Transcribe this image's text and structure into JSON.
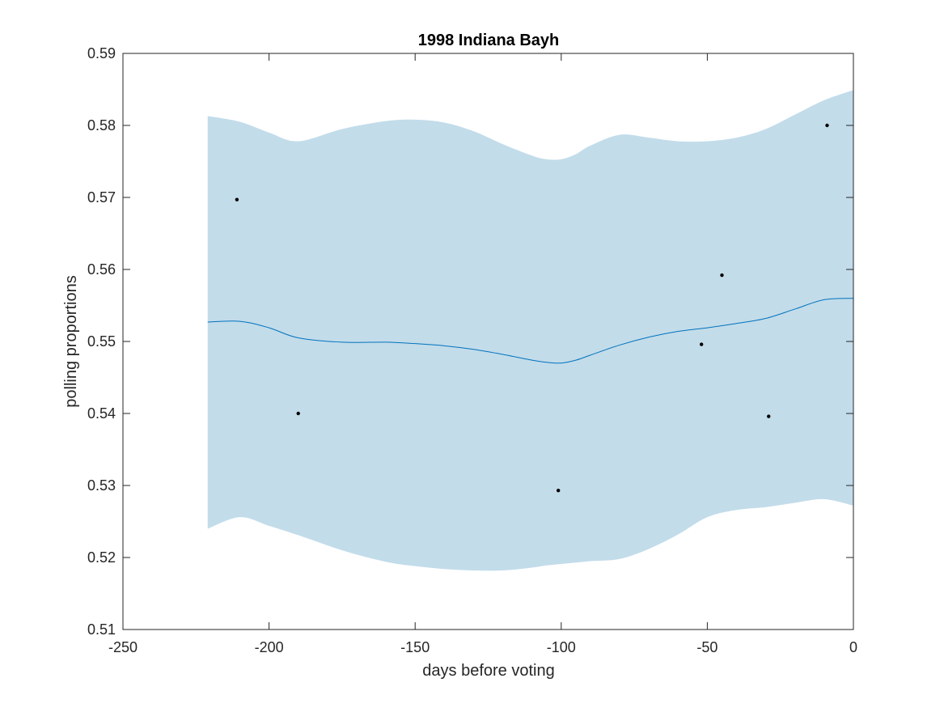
{
  "chart_data": {
    "type": "line",
    "title": "1998 Indiana Bayh",
    "xlabel": "days before voting",
    "ylabel": "polling proportions",
    "xlim": [
      -250,
      0
    ],
    "ylim": [
      0.51,
      0.59
    ],
    "xticks": [
      -250,
      -200,
      -150,
      -100,
      -50,
      0
    ],
    "xtick_labels": [
      "-250",
      "-200",
      "-150",
      "-100",
      "-50",
      "0"
    ],
    "yticks": [
      0.51,
      0.52,
      0.53,
      0.54,
      0.55,
      0.56,
      0.57,
      0.58,
      0.59
    ],
    "ytick_labels": [
      "0.51",
      "0.52",
      "0.53",
      "0.54",
      "0.55",
      "0.56",
      "0.57",
      "0.58",
      "0.59"
    ],
    "grid": false,
    "colors": {
      "band": "#c2dcea",
      "mean_line": "#0072bd",
      "points": "#000000",
      "axes": "#262626"
    },
    "mean": {
      "x": [
        -221,
        -210,
        -200,
        -190,
        -175,
        -160,
        -150,
        -140,
        -130,
        -120,
        -110,
        -105,
        -100,
        -95,
        -90,
        -80,
        -70,
        -60,
        -50,
        -40,
        -30,
        -20,
        -10,
        0
      ],
      "y": [
        0.5527,
        0.5528,
        0.5519,
        0.5505,
        0.5499,
        0.5499,
        0.5497,
        0.5494,
        0.5489,
        0.5482,
        0.5474,
        0.5471,
        0.547,
        0.5474,
        0.5481,
        0.5495,
        0.5506,
        0.5514,
        0.5519,
        0.5525,
        0.5532,
        0.5545,
        0.5558,
        0.556
      ]
    },
    "band": {
      "x": [
        -221,
        -210,
        -200,
        -190,
        -175,
        -160,
        -150,
        -140,
        -130,
        -120,
        -110,
        -105,
        -100,
        -95,
        -90,
        -80,
        -70,
        -60,
        -50,
        -40,
        -30,
        -20,
        -10,
        0
      ],
      "upper": [
        0.5813,
        0.5805,
        0.579,
        0.5778,
        0.5795,
        0.5806,
        0.5808,
        0.5804,
        0.5792,
        0.5774,
        0.5758,
        0.5753,
        0.5753,
        0.576,
        0.5772,
        0.5787,
        0.5783,
        0.5778,
        0.5778,
        0.5783,
        0.5795,
        0.5815,
        0.5835,
        0.5849
      ],
      "lower": [
        0.524,
        0.5256,
        0.5244,
        0.5231,
        0.521,
        0.5194,
        0.5188,
        0.5184,
        0.5182,
        0.5182,
        0.5186,
        0.5189,
        0.5191,
        0.5193,
        0.5195,
        0.5198,
        0.5212,
        0.5232,
        0.5256,
        0.5266,
        0.527,
        0.5276,
        0.5281,
        0.5272
      ]
    },
    "points": {
      "x": [
        -211,
        -190,
        -101,
        -52,
        -45,
        -29,
        -9
      ],
      "y": [
        0.5697,
        0.54,
        0.5293,
        0.5496,
        0.5592,
        0.5396,
        0.58
      ]
    }
  }
}
